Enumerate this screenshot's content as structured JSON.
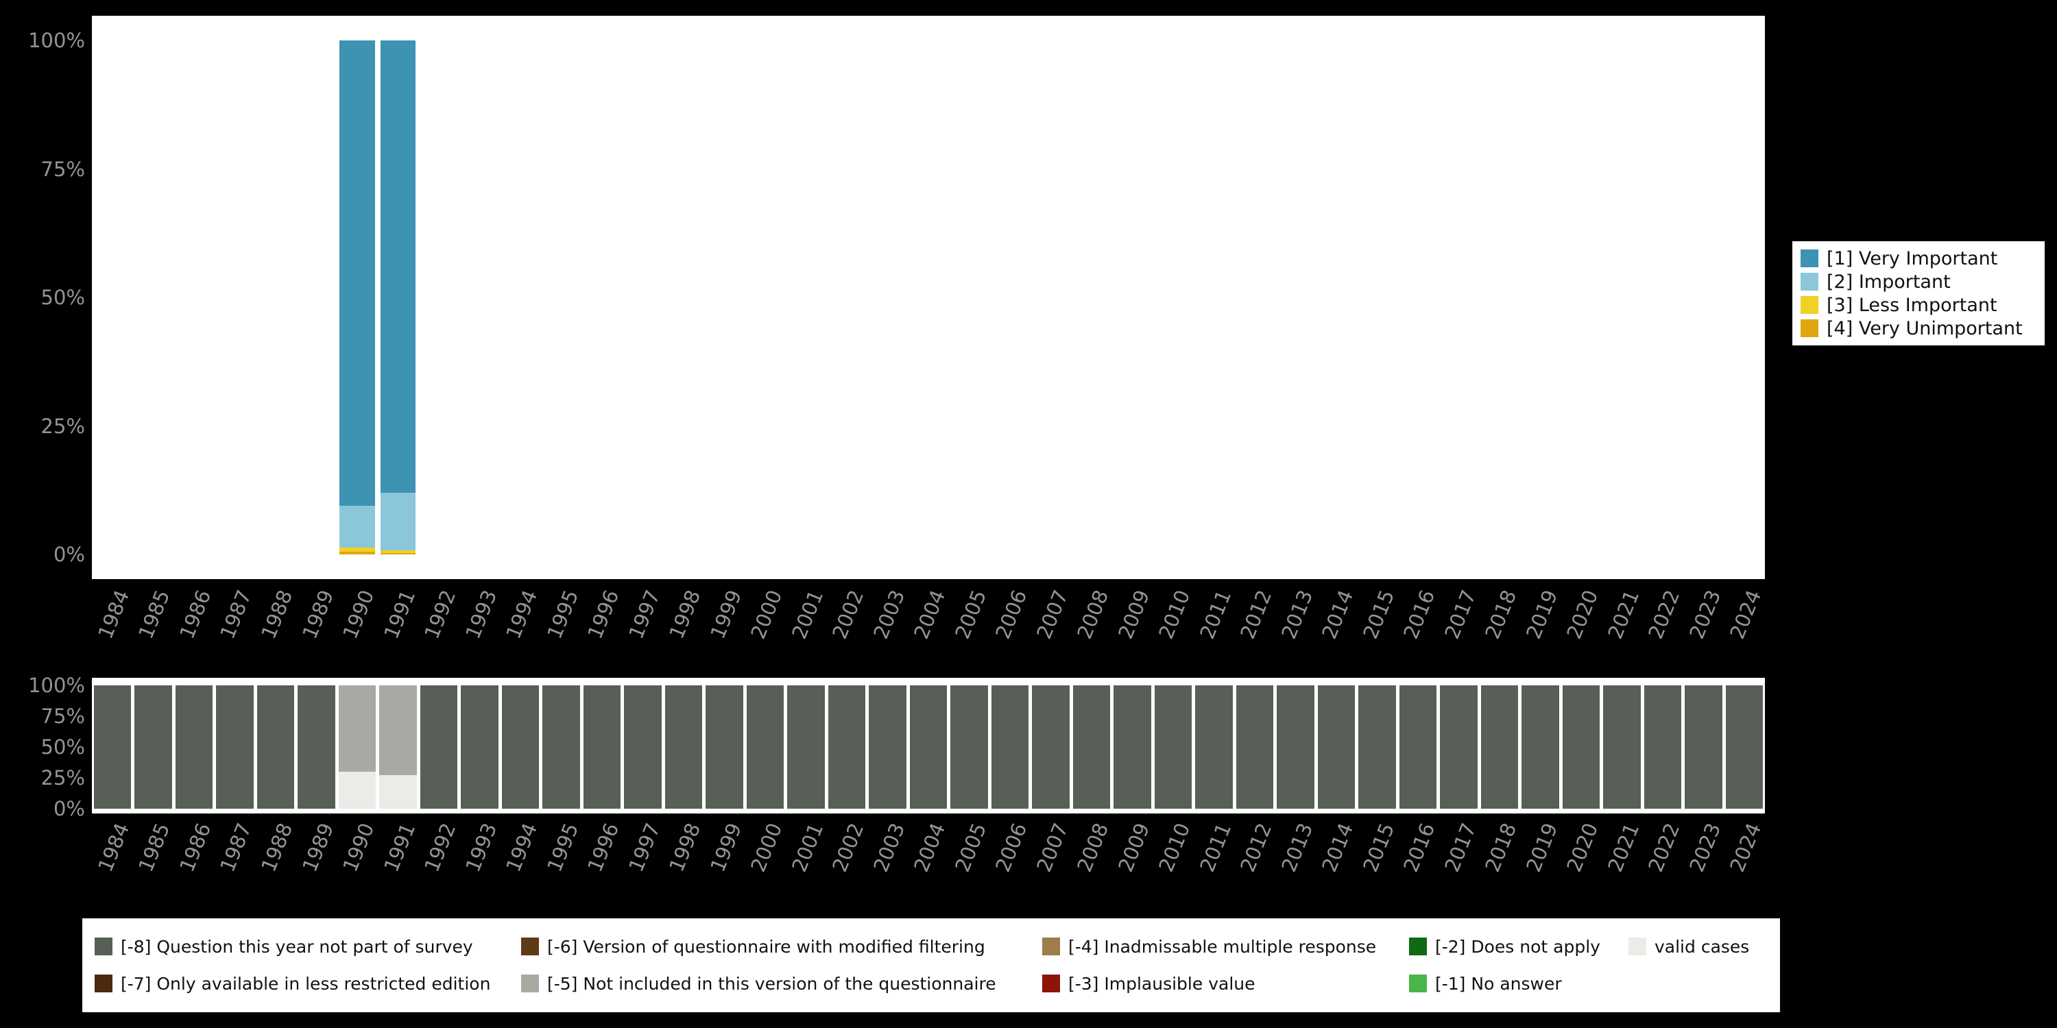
{
  "chart_data": [
    {
      "id": "value-distribution",
      "type": "bar",
      "stacked": true,
      "unit": "percent",
      "title": "",
      "xlabel": "",
      "ylabel": "",
      "ylim": [
        0,
        100
      ],
      "yticks": [
        "100%",
        "75%",
        "50%",
        "25%",
        "0%"
      ],
      "grid": false,
      "legend_position": "right",
      "categories": [
        "1984",
        "1985",
        "1986",
        "1987",
        "1988",
        "1989",
        "1990",
        "1991",
        "1992",
        "1993",
        "1994",
        "1995",
        "1996",
        "1997",
        "1998",
        "1999",
        "2000",
        "2001",
        "2002",
        "2003",
        "2004",
        "2005",
        "2006",
        "2007",
        "2008",
        "2009",
        "2010",
        "2011",
        "2012",
        "2013",
        "2014",
        "2015",
        "2016",
        "2017",
        "2018",
        "2019",
        "2020",
        "2021",
        "2022",
        "2023",
        "2024"
      ],
      "series": [
        {
          "name": "[1] Very Important",
          "color": "#3e92b2",
          "values": {
            "1990": 90.5,
            "1991": 88.0
          }
        },
        {
          "name": "[2] Important",
          "color": "#8cc6d9",
          "values": {
            "1990": 8.2,
            "1991": 11.2
          }
        },
        {
          "name": "[3] Less Important",
          "color": "#f0d125",
          "values": {
            "1990": 0.8,
            "1991": 0.5
          }
        },
        {
          "name": "[4] Very Unimportant",
          "color": "#dfa60d",
          "values": {
            "1990": 0.5,
            "1991": 0.3
          }
        }
      ],
      "render_order_bottom_to_top": [
        3,
        2,
        1,
        0
      ]
    },
    {
      "id": "missing-values",
      "type": "bar",
      "stacked": true,
      "unit": "percent",
      "title": "",
      "xlabel": "",
      "ylabel": "",
      "ylim": [
        0,
        100
      ],
      "yticks": [
        "100%",
        "75%",
        "50%",
        "25%",
        "0%"
      ],
      "grid": false,
      "legend_position": "bottom",
      "categories": [
        "1984",
        "1985",
        "1986",
        "1987",
        "1988",
        "1989",
        "1990",
        "1991",
        "1992",
        "1993",
        "1994",
        "1995",
        "1996",
        "1997",
        "1998",
        "1999",
        "2000",
        "2001",
        "2002",
        "2003",
        "2004",
        "2005",
        "2006",
        "2007",
        "2008",
        "2009",
        "2010",
        "2011",
        "2012",
        "2013",
        "2014",
        "2015",
        "2016",
        "2017",
        "2018",
        "2019",
        "2020",
        "2021",
        "2022",
        "2023",
        "2024"
      ],
      "series": [
        {
          "name": "valid cases",
          "color": "#eaece8",
          "values": {
            "1990": 30,
            "1991": 27
          }
        },
        {
          "name": "[-5] Not included in this version of the questionnaire",
          "color": "#a6aaa3",
          "values": {
            "1990": 70,
            "1991": 73
          }
        },
        {
          "name": "[-8] Question this year not part of survey",
          "color": "#575f57",
          "default": 100,
          "values": {
            "1990": 0,
            "1991": 0
          }
        }
      ],
      "render_order_bottom_to_top": [
        0,
        1,
        2
      ]
    }
  ],
  "legend_values": {
    "items": [
      {
        "label": "[1] Very Important",
        "color": "#3e92b2"
      },
      {
        "label": "[2] Important",
        "color": "#8cc6d9"
      },
      {
        "label": "[3] Less Important",
        "color": "#f0d125"
      },
      {
        "label": "[4] Very Unimportant",
        "color": "#dfa60d"
      }
    ]
  },
  "legend_missing": {
    "items": [
      {
        "label": "[-8] Question this year not part of survey",
        "color": "#575f57",
        "col": 0,
        "row": 0
      },
      {
        "label": "[-7] Only available in less restricted edition",
        "color": "#4a2a10",
        "col": 0,
        "row": 1
      },
      {
        "label": "[-6] Version of questionnaire with modified filtering",
        "color": "#5e3a16",
        "col": 1,
        "row": 0
      },
      {
        "label": "[-5] Not included in this version of the questionnaire",
        "color": "#a6aaa3",
        "col": 1,
        "row": 1
      },
      {
        "label": "[-4] Inadmissable multiple response",
        "color": "#9e7c4c",
        "col": 2,
        "row": 0
      },
      {
        "label": "[-3] Implausible value",
        "color": "#8e1408",
        "col": 2,
        "row": 1
      },
      {
        "label": "[-2] Does not apply",
        "color": "#106b10",
        "col": 3,
        "row": 0
      },
      {
        "label": "[-1] No answer",
        "color": "#4ab648",
        "col": 3,
        "row": 1
      },
      {
        "label": "valid cases",
        "color": "#eaece8",
        "col": 4,
        "row": 0
      }
    ]
  }
}
